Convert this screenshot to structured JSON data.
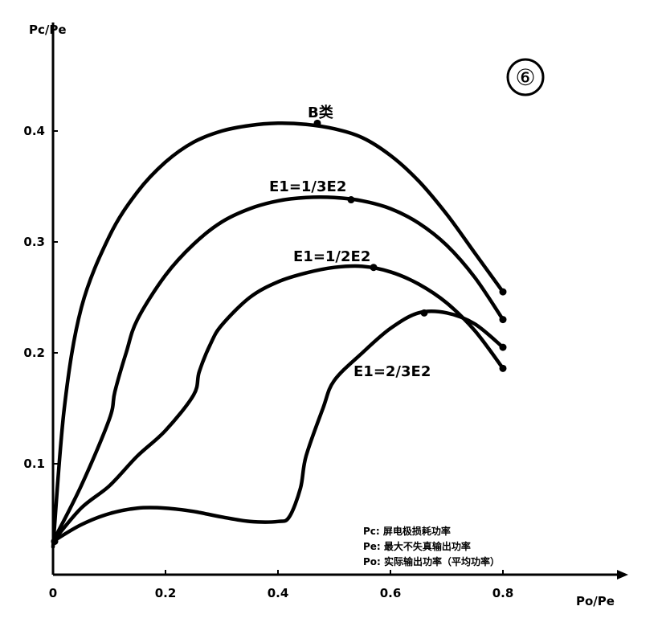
{
  "chart_data": {
    "type": "line",
    "badge": "⑥",
    "ylabel": "Pc/Pe",
    "xlabel": "Po/Pe",
    "xlim": [
      0,
      0.8
    ],
    "ylim": [
      0,
      0.4
    ],
    "grid": false,
    "x_ticks": [
      {
        "value": 0,
        "label": "0"
      },
      {
        "value": 0.2,
        "label": "0.2"
      },
      {
        "value": 0.4,
        "label": "0.4"
      },
      {
        "value": 0.6,
        "label": "0.6"
      },
      {
        "value": 0.8,
        "label": "0.8"
      }
    ],
    "y_ticks": [
      {
        "value": 0.1,
        "label": "0.1"
      },
      {
        "value": 0.2,
        "label": "0.2"
      },
      {
        "value": 0.3,
        "label": "0.3"
      },
      {
        "value": 0.4,
        "label": "0.4"
      }
    ],
    "series": [
      {
        "name": "B类",
        "x": [
          0,
          0.02,
          0.05,
          0.1,
          0.15,
          0.2,
          0.25,
          0.3,
          0.35,
          0.4,
          0.45,
          0.5,
          0.55,
          0.6,
          0.65,
          0.7,
          0.75,
          0.8
        ],
        "y": [
          0.025,
          0.15,
          0.24,
          0.305,
          0.345,
          0.372,
          0.39,
          0.4,
          0.405,
          0.407,
          0.406,
          0.402,
          0.394,
          0.378,
          0.355,
          0.325,
          0.29,
          0.255
        ],
        "marker": [
          0.47,
          0.407
        ]
      },
      {
        "name": "E1=1/3E2",
        "x": [
          0,
          0.05,
          0.1,
          0.11,
          0.13,
          0.15,
          0.2,
          0.25,
          0.3,
          0.35,
          0.4,
          0.45,
          0.5,
          0.55,
          0.6,
          0.65,
          0.7,
          0.75,
          0.8
        ],
        "y": [
          0.03,
          0.08,
          0.14,
          0.165,
          0.2,
          0.23,
          0.27,
          0.298,
          0.318,
          0.33,
          0.337,
          0.34,
          0.34,
          0.337,
          0.33,
          0.317,
          0.297,
          0.268,
          0.23
        ],
        "marker": [
          0.53,
          0.338
        ]
      },
      {
        "name": "E1=1/2E2",
        "x": [
          0,
          0.05,
          0.1,
          0.15,
          0.2,
          0.25,
          0.26,
          0.28,
          0.3,
          0.35,
          0.4,
          0.45,
          0.5,
          0.55,
          0.6,
          0.65,
          0.7,
          0.75,
          0.8
        ],
        "y": [
          0.03,
          0.06,
          0.08,
          0.107,
          0.13,
          0.162,
          0.183,
          0.208,
          0.225,
          0.25,
          0.264,
          0.272,
          0.277,
          0.278,
          0.273,
          0.262,
          0.245,
          0.22,
          0.186
        ],
        "marker": [
          0.57,
          0.277
        ]
      },
      {
        "name": "E1=2/3E2",
        "x": [
          0,
          0.05,
          0.1,
          0.15,
          0.2,
          0.25,
          0.3,
          0.35,
          0.4,
          0.42,
          0.44,
          0.45,
          0.48,
          0.5,
          0.55,
          0.6,
          0.65,
          0.7,
          0.75,
          0.8
        ],
        "y": [
          0.03,
          0.045,
          0.055,
          0.06,
          0.06,
          0.057,
          0.052,
          0.048,
          0.048,
          0.052,
          0.078,
          0.107,
          0.15,
          0.175,
          0.2,
          0.222,
          0.236,
          0.236,
          0.226,
          0.205
        ],
        "marker": [
          0.66,
          0.236
        ]
      }
    ]
  },
  "legend": {
    "lines": [
      "Pc: 屏电极损耗功率",
      "Pe: 最大不失真输出功率",
      "Po: 实际输出功率（平均功率）"
    ]
  }
}
